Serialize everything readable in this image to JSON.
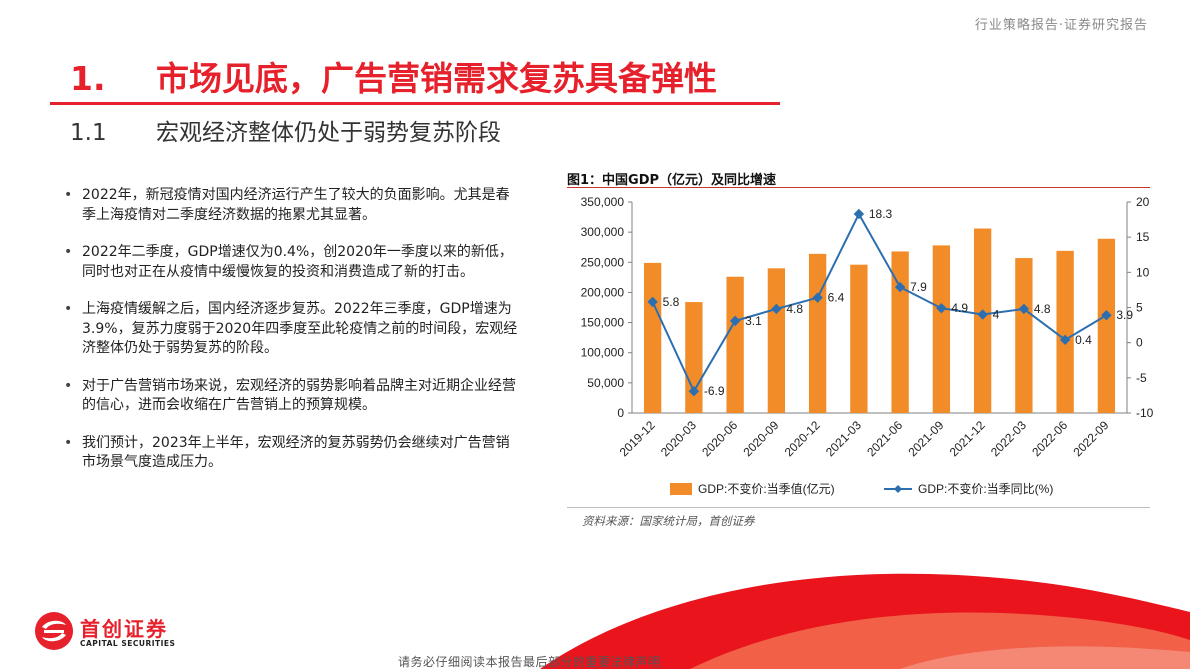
{
  "header": {
    "right_text": "行业策略报告·证券研究报告"
  },
  "section": {
    "num": "1.",
    "title": "市场见底，广告营销需求复苏具备弹性"
  },
  "subsection": {
    "num": "1.1",
    "title": "宏观经济整体仍处于弱势复苏阶段"
  },
  "bullets": [
    "2022年，新冠疫情对国内经济运行产生了较大的负面影响。尤其是春季上海疫情对二季度经济数据的拖累尤其显著。",
    "2022年二季度，GDP增速仅为0.4%，创2020年一季度以来的新低，同时也对正在从疫情中缓慢恢复的投资和消费造成了新的打击。",
    "上海疫情缓解之后，国内经济逐步复苏。2022年三季度，GDP增速为3.9%，复苏力度弱于2020年四季度至此轮疫情之前的时间段，宏观经济整体仍处于弱势复苏的阶段。",
    "对于广告营销市场来说，宏观经济的弱势影响着品牌主对近期企业经营的信心，进而会收缩在广告营销上的预算规模。",
    "我们预计，2023年上半年，宏观经济的复苏弱势仍会继续对广告营销市场景气度造成压力。"
  ],
  "figure": {
    "title": "图1：中国GDP（亿元）及同比增速",
    "source": "资料来源：国家统计局，首创证券"
  },
  "chart_data": {
    "type": "bar+line",
    "categories": [
      "2019-12",
      "2020-03",
      "2020-06",
      "2020-09",
      "2020-12",
      "2021-03",
      "2021-06",
      "2021-09",
      "2021-12",
      "2022-03",
      "2022-06",
      "2022-09"
    ],
    "series": [
      {
        "name": "GDP:不变价:当季值(亿元)",
        "type": "bar",
        "axis": "left",
        "color": "#f28c28",
        "values": [
          249000,
          184000,
          226000,
          240000,
          264000,
          246000,
          268000,
          278000,
          306000,
          257000,
          269000,
          289000
        ]
      },
      {
        "name": "GDP:不变价:当季同比(%)",
        "type": "line",
        "axis": "right",
        "color": "#2b6fb0",
        "values": [
          5.8,
          -6.9,
          3.1,
          4.8,
          6.4,
          18.3,
          7.9,
          4.9,
          4,
          4.8,
          0.4,
          3.9
        ],
        "labels": [
          "5.8",
          "-6.9",
          "3.1",
          "4.8",
          "6.4",
          "18.3",
          "7.9",
          "4.9",
          "4",
          "4.8",
          "0.4",
          "3.9"
        ]
      }
    ],
    "y_left": {
      "min": 0,
      "max": 350000,
      "ticks": [
        0,
        50000,
        100000,
        150000,
        200000,
        250000,
        300000,
        350000
      ],
      "tick_labels": [
        "0",
        "50,000",
        "100,000",
        "150,000",
        "200,000",
        "250,000",
        "300,000",
        "350,000"
      ]
    },
    "y_right": {
      "min": -10,
      "max": 20,
      "ticks": [
        -10,
        -5,
        0,
        5,
        10,
        15,
        20
      ],
      "tick_labels": [
        "-10",
        "-5",
        "0",
        "5",
        "10",
        "15",
        "20"
      ]
    },
    "legend": "bottom",
    "grid": false
  },
  "logo": {
    "cn": "首创证券",
    "en": "CAPITAL SECURITIES"
  },
  "footer": {
    "text": "请务必仔细阅读本报告最后部分的重要法律声明"
  }
}
